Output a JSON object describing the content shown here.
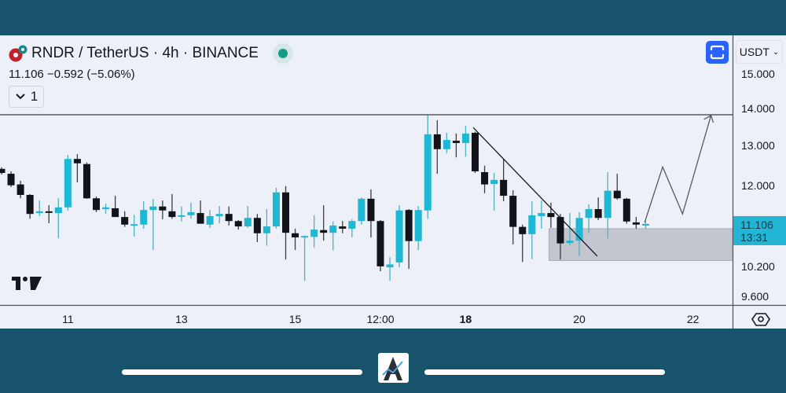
{
  "header": {
    "title": "RNDR / TetherUS · 4h · BINANCE",
    "quote": "11.106  −0.592 (−5.06%)",
    "collapse_label": "1"
  },
  "price_axis": {
    "currency": "USDT",
    "labels": [
      "15.000",
      "14.000",
      "13.000",
      "12.000",
      "10.200",
      "9.600"
    ],
    "label_values": [
      15,
      14,
      13,
      12,
      10.2,
      9.6
    ],
    "scale": "log",
    "last_price": "11.106",
    "countdown": "13:31"
  },
  "time_axis": {
    "labels": [
      {
        "text": "11",
        "bar": 7,
        "bold": false
      },
      {
        "text": "13",
        "bar": 19,
        "bold": false
      },
      {
        "text": "15",
        "bar": 31,
        "bold": false
      },
      {
        "text": "12:00",
        "bar": 40,
        "bold": false
      },
      {
        "text": "18",
        "bar": 49,
        "bold": true
      },
      {
        "text": "20",
        "bar": 61,
        "bold": false
      },
      {
        "text": "22",
        "bar": 73,
        "bold": false
      }
    ]
  },
  "colors": {
    "up": "#1fb8d4",
    "down": "#111318",
    "background": "#eef0f8",
    "frame": "#17546b",
    "accent": "#2962ff",
    "zone": "#c3c6ce"
  },
  "chart_data": {
    "type": "candlestick",
    "symbol": "RNDR / TetherUS",
    "interval": "4h",
    "exchange": "BINANCE",
    "ylim": [
      9.5,
      15.2
    ],
    "yscale": "log",
    "ohlc": [
      [
        12.4,
        12.44,
        12.26,
        12.3
      ],
      [
        12.28,
        12.34,
        11.96,
        12.0
      ],
      [
        12.02,
        12.11,
        11.69,
        11.77
      ],
      [
        11.77,
        11.79,
        11.22,
        11.33
      ],
      [
        11.35,
        11.64,
        11.28,
        11.39
      ],
      [
        11.39,
        11.53,
        11.12,
        11.37
      ],
      [
        11.35,
        11.69,
        10.79,
        11.48
      ],
      [
        11.48,
        12.75,
        11.41,
        12.65
      ],
      [
        12.65,
        12.77,
        12.07,
        12.54
      ],
      [
        12.52,
        12.56,
        11.68,
        11.69
      ],
      [
        11.69,
        11.73,
        11.37,
        11.42
      ],
      [
        11.44,
        11.57,
        11.33,
        11.48
      ],
      [
        11.46,
        11.75,
        11.26,
        11.26
      ],
      [
        11.26,
        11.39,
        11.04,
        11.09
      ],
      [
        11.09,
        11.31,
        10.83,
        11.1
      ],
      [
        11.09,
        11.62,
        11.0,
        11.42
      ],
      [
        11.42,
        11.68,
        10.54,
        11.5
      ],
      [
        11.5,
        11.64,
        11.21,
        11.41
      ],
      [
        11.39,
        11.79,
        11.22,
        11.26
      ],
      [
        11.28,
        11.5,
        11.16,
        11.3
      ],
      [
        11.3,
        11.59,
        11.22,
        11.37
      ],
      [
        11.35,
        11.64,
        11.11,
        11.11
      ],
      [
        11.09,
        11.42,
        11.02,
        11.28
      ],
      [
        11.28,
        11.51,
        11.12,
        11.33
      ],
      [
        11.33,
        11.5,
        11.07,
        11.17
      ],
      [
        11.17,
        11.19,
        10.98,
        11.05
      ],
      [
        11.05,
        11.51,
        11.02,
        11.24
      ],
      [
        11.24,
        11.33,
        10.71,
        10.9
      ],
      [
        10.9,
        11.44,
        10.63,
        11.05
      ],
      [
        11.05,
        11.94,
        11.0,
        11.83
      ],
      [
        11.83,
        11.98,
        10.34,
        10.91
      ],
      [
        10.9,
        11.0,
        10.54,
        10.81
      ],
      [
        10.82,
        10.85,
        9.91,
        10.84
      ],
      [
        10.82,
        11.3,
        10.59,
        10.98
      ],
      [
        10.97,
        11.53,
        10.74,
        10.91
      ],
      [
        10.91,
        11.16,
        10.53,
        11.07
      ],
      [
        11.05,
        11.17,
        10.9,
        11.0
      ],
      [
        11.0,
        11.21,
        10.81,
        11.17
      ],
      [
        11.17,
        11.71,
        11.09,
        11.68
      ],
      [
        11.68,
        11.9,
        10.81,
        11.17
      ],
      [
        11.17,
        11.19,
        10.1,
        10.2
      ],
      [
        10.18,
        10.39,
        9.91,
        10.24
      ],
      [
        10.28,
        11.53,
        10.18,
        11.41
      ],
      [
        11.42,
        11.44,
        10.15,
        10.73
      ],
      [
        10.73,
        11.51,
        10.54,
        11.42
      ],
      [
        11.41,
        13.82,
        11.22,
        13.29
      ],
      [
        13.29,
        13.67,
        12.28,
        12.9
      ],
      [
        12.9,
        13.33,
        12.79,
        13.14
      ],
      [
        13.12,
        13.31,
        12.69,
        13.06
      ],
      [
        13.06,
        13.52,
        12.71,
        13.31
      ],
      [
        13.33,
        13.36,
        12.3,
        12.34
      ],
      [
        12.32,
        12.48,
        11.81,
        12.02
      ],
      [
        12.03,
        12.3,
        11.41,
        12.13
      ],
      [
        12.13,
        12.65,
        11.62,
        11.75
      ],
      [
        11.75,
        11.88,
        10.66,
        11.04
      ],
      [
        11.04,
        11.09,
        10.29,
        10.88
      ],
      [
        10.88,
        11.62,
        10.35,
        11.3
      ],
      [
        11.28,
        11.64,
        11.0,
        11.35
      ],
      [
        11.35,
        11.59,
        11.02,
        11.26
      ],
      [
        11.26,
        11.33,
        10.34,
        10.68
      ],
      [
        10.69,
        11.35,
        10.64,
        10.74
      ],
      [
        10.74,
        11.37,
        10.42,
        11.24
      ],
      [
        11.24,
        11.55,
        10.9,
        11.44
      ],
      [
        11.44,
        11.71,
        11.19,
        11.24
      ],
      [
        11.24,
        12.32,
        10.79,
        11.87
      ],
      [
        11.87,
        12.28,
        11.66,
        11.69
      ],
      [
        11.68,
        11.7,
        11.11,
        11.16
      ],
      [
        11.14,
        11.26,
        11.0,
        11.09
      ],
      [
        11.1,
        11.17,
        11.0,
        11.106
      ]
    ],
    "drawings": {
      "resistance_price": 13.82,
      "trendline": [
        [
          49.8,
          13.47
        ],
        [
          62.9,
          10.41
        ]
      ],
      "demand_zone": {
        "from_bar": 57.8,
        "top": 11.0,
        "bottom": 10.32
      },
      "projection": [
        [
          67.9,
          11.14
        ],
        [
          69.8,
          12.45
        ],
        [
          71.9,
          11.33
        ],
        [
          74.9,
          13.8
        ]
      ]
    }
  }
}
